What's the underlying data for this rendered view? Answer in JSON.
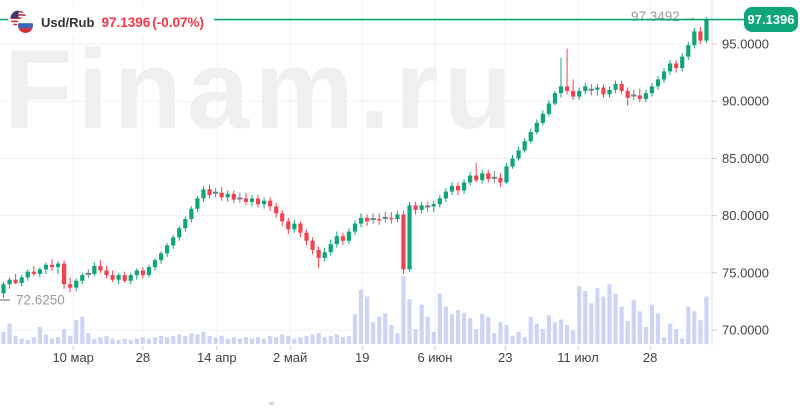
{
  "header": {
    "symbol": "Usd/Rub",
    "price": "97.1396",
    "change": "(-0.07%)"
  },
  "watermark": {
    "text": "Finam.ru"
  },
  "colors": {
    "up": "#0FA57B",
    "down": "#F4424F",
    "doji": "#7B8087",
    "volume": "#CDD4F6",
    "price_line": "#0FA57B",
    "badge_bg": "#0FA57B",
    "badge_text": "#FFFFFF",
    "grid": "#F1F1F3",
    "border": "#E3E3E6",
    "tick": "#C9C9C9",
    "axis_text": "#424242",
    "annotation_text": "#9B9B9B",
    "header_change": "#F23645"
  },
  "chart_data": {
    "type": "candlestick+volume",
    "symbol": "USD/RUB",
    "title": "Usd/Rub daily candlestick chart, Finam.ru",
    "last_price": 97.1396,
    "change_pct": -0.07,
    "grid": true,
    "ylim": [
      68.5,
      98.5
    ],
    "y_axis": {
      "ticks": [
        {
          "label": "95.0000",
          "price": 95
        },
        {
          "label": "90.0000",
          "price": 90
        },
        {
          "label": "85.0000",
          "price": 85
        },
        {
          "label": "80.0000",
          "price": 80
        },
        {
          "label": "75.0000",
          "price": 75
        },
        {
          "label": "70.0000",
          "price": 70
        }
      ]
    },
    "x_axis": {
      "ticks": [
        {
          "label": "10 мар",
          "i": 11.5
        },
        {
          "label": "28",
          "i": 23
        },
        {
          "label": "14 апр",
          "i": 35.2
        },
        {
          "label": "2 май",
          "i": 47.3
        },
        {
          "label": "19",
          "i": 59.2
        },
        {
          "label": "6 июн",
          "i": 71.2
        },
        {
          "label": "23",
          "i": 82.8
        },
        {
          "label": "11 июл",
          "i": 94.8
        },
        {
          "label": "28",
          "i": 106.7
        }
      ]
    },
    "annotations": {
      "high": {
        "label": "97.3492",
        "arrow": "→",
        "price": 97.3492
      },
      "low": {
        "label": "72.6250",
        "price": 72.625
      }
    },
    "badge": {
      "label": "97.1396",
      "price": 97.1396
    },
    "candles": [
      [
        73.2,
        74.2,
        72.8,
        74.0
      ],
      [
        74.0,
        74.6,
        73.6,
        74.4
      ],
      [
        74.4,
        74.9,
        74.0,
        74.1
      ],
      [
        74.1,
        74.8,
        73.8,
        74.6
      ],
      [
        74.6,
        75.3,
        74.3,
        75.1
      ],
      [
        75.1,
        75.6,
        74.7,
        74.9
      ],
      [
        74.9,
        75.5,
        74.6,
        75.3
      ],
      [
        75.3,
        75.9,
        74.9,
        75.7
      ],
      [
        75.7,
        76.2,
        75.2,
        75.5
      ],
      [
        75.5,
        76.0,
        74.9,
        75.8
      ],
      [
        75.8,
        76.1,
        73.6,
        74.0
      ],
      [
        74.0,
        74.6,
        73.3,
        73.7
      ],
      [
        73.7,
        74.5,
        73.4,
        74.3
      ],
      [
        74.3,
        75.0,
        74.0,
        74.8
      ],
      [
        74.9,
        75.3,
        74.5,
        74.9
      ],
      [
        74.9,
        75.9,
        74.7,
        75.6
      ],
      [
        75.6,
        76.1,
        75.0,
        75.2
      ],
      [
        75.2,
        75.6,
        74.5,
        74.8
      ],
      [
        74.8,
        75.2,
        74.2,
        74.4
      ],
      [
        74.4,
        75.0,
        74.0,
        74.8
      ],
      [
        74.8,
        75.1,
        74.1,
        74.3
      ],
      [
        74.3,
        75.0,
        74.0,
        74.8
      ],
      [
        74.8,
        75.4,
        74.4,
        75.2
      ],
      [
        75.2,
        75.5,
        74.5,
        74.8
      ],
      [
        74.8,
        75.7,
        74.6,
        75.5
      ],
      [
        75.5,
        76.3,
        75.2,
        76.1
      ],
      [
        76.1,
        76.9,
        75.8,
        76.7
      ],
      [
        76.7,
        77.6,
        76.4,
        77.4
      ],
      [
        77.4,
        78.3,
        77.1,
        78.1
      ],
      [
        78.1,
        79.1,
        77.8,
        78.9
      ],
      [
        78.9,
        79.9,
        78.6,
        79.7
      ],
      [
        79.7,
        80.8,
        79.4,
        80.6
      ],
      [
        80.6,
        81.7,
        80.3,
        81.5
      ],
      [
        81.5,
        82.6,
        81.2,
        82.3
      ],
      [
        82.3,
        82.7,
        81.5,
        81.8
      ],
      [
        82.0,
        82.4,
        81.6,
        82.0
      ],
      [
        82.0,
        82.5,
        81.3,
        81.6
      ],
      [
        81.6,
        82.2,
        81.2,
        81.9
      ],
      [
        81.9,
        82.2,
        81.1,
        81.4
      ],
      [
        81.5,
        82.0,
        81.1,
        81.5
      ],
      [
        81.5,
        82.0,
        80.9,
        81.2
      ],
      [
        81.2,
        81.8,
        80.8,
        81.5
      ],
      [
        81.5,
        81.8,
        80.7,
        81.0
      ],
      [
        81.0,
        81.6,
        80.6,
        81.3
      ],
      [
        81.3,
        81.6,
        80.4,
        80.8
      ],
      [
        80.8,
        81.1,
        79.8,
        80.2
      ],
      [
        80.2,
        80.5,
        79.1,
        79.5
      ],
      [
        79.5,
        79.8,
        78.4,
        78.8
      ],
      [
        78.8,
        79.6,
        78.5,
        79.3
      ],
      [
        79.3,
        79.5,
        78.1,
        78.5
      ],
      [
        78.5,
        78.8,
        77.4,
        77.8
      ],
      [
        77.8,
        78.1,
        76.6,
        77.0
      ],
      [
        77.0,
        77.3,
        75.4,
        76.3
      ],
      [
        76.3,
        77.2,
        76.0,
        76.8
      ],
      [
        76.8,
        77.9,
        76.5,
        77.5
      ],
      [
        77.5,
        78.6,
        77.2,
        78.2
      ],
      [
        78.2,
        78.5,
        77.4,
        77.8
      ],
      [
        77.8,
        78.9,
        77.5,
        78.6
      ],
      [
        78.6,
        79.6,
        78.3,
        79.3
      ],
      [
        79.3,
        80.2,
        79.0,
        79.8
      ],
      [
        79.8,
        80.1,
        79.1,
        79.5
      ],
      [
        79.7,
        80.2,
        79.3,
        79.7
      ],
      [
        79.7,
        80.2,
        79.2,
        79.6
      ],
      [
        79.8,
        80.3,
        79.4,
        79.8
      ],
      [
        79.8,
        80.3,
        79.3,
        79.7
      ],
      [
        79.7,
        80.4,
        79.4,
        80.1
      ],
      [
        80.1,
        80.4,
        74.9,
        75.3
      ],
      [
        75.3,
        81.2,
        75.1,
        80.9
      ],
      [
        80.9,
        81.2,
        80.1,
        80.5
      ],
      [
        80.5,
        81.2,
        80.2,
        80.9
      ],
      [
        80.8,
        81.2,
        80.3,
        80.8
      ],
      [
        80.8,
        81.3,
        80.3,
        81.0
      ],
      [
        81.0,
        81.8,
        80.7,
        81.5
      ],
      [
        81.5,
        82.4,
        81.2,
        82.1
      ],
      [
        82.1,
        82.9,
        81.8,
        82.6
      ],
      [
        82.6,
        82.9,
        81.8,
        82.2
      ],
      [
        82.2,
        83.2,
        81.9,
        82.9
      ],
      [
        82.9,
        83.8,
        82.6,
        83.5
      ],
      [
        83.5,
        84.6,
        82.9,
        83.1
      ],
      [
        83.1,
        84.0,
        82.8,
        83.7
      ],
      [
        83.7,
        84.0,
        82.9,
        83.2
      ],
      [
        83.3,
        83.9,
        82.8,
        83.3
      ],
      [
        83.3,
        83.7,
        82.5,
        82.9
      ],
      [
        82.9,
        84.6,
        82.8,
        84.3
      ],
      [
        84.3,
        85.3,
        84.1,
        85.0
      ],
      [
        85.0,
        86.0,
        84.8,
        85.7
      ],
      [
        85.7,
        86.8,
        85.5,
        86.5
      ],
      [
        86.5,
        87.6,
        86.3,
        87.3
      ],
      [
        87.3,
        88.4,
        87.1,
        88.1
      ],
      [
        88.1,
        89.2,
        87.9,
        88.9
      ],
      [
        88.9,
        90.1,
        88.7,
        89.8
      ],
      [
        89.8,
        90.9,
        89.6,
        90.7
      ],
      [
        90.7,
        93.8,
        90.3,
        91.3
      ],
      [
        91.3,
        94.6,
        90.6,
        90.9
      ],
      [
        90.9,
        91.9,
        90.1,
        90.4
      ],
      [
        90.4,
        91.2,
        90.1,
        90.9
      ],
      [
        90.9,
        91.6,
        90.6,
        91.3
      ],
      [
        91.0,
        91.5,
        90.5,
        91.0
      ],
      [
        91.0,
        91.5,
        90.5,
        91.2
      ],
      [
        91.2,
        91.5,
        90.3,
        90.6
      ],
      [
        90.6,
        91.3,
        90.3,
        91.0
      ],
      [
        91.0,
        91.8,
        90.7,
        91.5
      ],
      [
        91.5,
        91.8,
        90.6,
        90.9
      ],
      [
        90.9,
        91.2,
        89.6,
        90.3
      ],
      [
        90.5,
        91.0,
        90.1,
        90.5
      ],
      [
        90.5,
        91.1,
        89.9,
        90.2
      ],
      [
        90.2,
        91.0,
        89.9,
        90.7
      ],
      [
        90.7,
        91.6,
        90.4,
        91.3
      ],
      [
        91.3,
        92.2,
        91.0,
        91.9
      ],
      [
        91.9,
        92.9,
        91.6,
        92.6
      ],
      [
        92.6,
        93.6,
        92.3,
        93.3
      ],
      [
        93.3,
        93.6,
        92.5,
        92.9
      ],
      [
        92.9,
        94.2,
        92.6,
        93.9
      ],
      [
        93.9,
        95.2,
        93.6,
        94.9
      ],
      [
        94.9,
        96.4,
        94.6,
        96.1
      ],
      [
        96.1,
        96.5,
        95.0,
        95.3
      ],
      [
        95.3,
        97.3492,
        95.1,
        97.1396
      ]
    ],
    "volumes": [
      18,
      30,
      12,
      8,
      6,
      10,
      25,
      14,
      8,
      10,
      22,
      12,
      35,
      40,
      16,
      8,
      10,
      12,
      8,
      6,
      8,
      6,
      8,
      10,
      8,
      10,
      12,
      10,
      12,
      14,
      12,
      16,
      14,
      18,
      12,
      10,
      12,
      8,
      10,
      8,
      10,
      8,
      10,
      8,
      12,
      10,
      14,
      12,
      8,
      10,
      12,
      14,
      16,
      10,
      12,
      14,
      10,
      12,
      44,
      80,
      70,
      32,
      40,
      45,
      28,
      16,
      100,
      66,
      22,
      58,
      40,
      18,
      74,
      55,
      44,
      50,
      46,
      38,
      22,
      44,
      40,
      16,
      32,
      28,
      12,
      18,
      10,
      40,
      30,
      22,
      42,
      32,
      36,
      28,
      20,
      85,
      78,
      60,
      82,
      70,
      88,
      74,
      55,
      34,
      65,
      48,
      25,
      58,
      45,
      10,
      30,
      22,
      8,
      55,
      48,
      35,
      70
    ]
  }
}
